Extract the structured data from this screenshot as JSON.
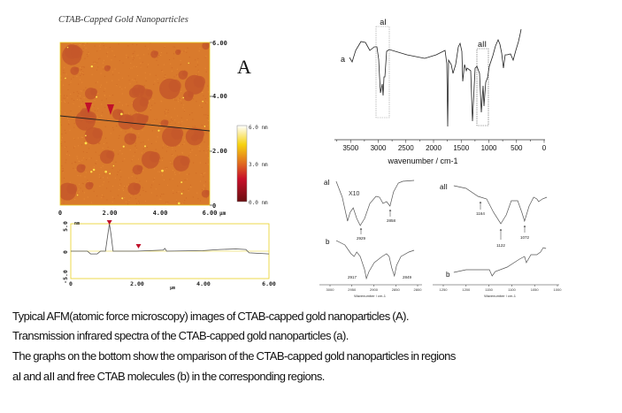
{
  "afm": {
    "title": "CTAB-Capped Gold Nanoparticles",
    "panel_label": "A",
    "y_ticks": [
      "6.00",
      "4.00",
      "2.00",
      "0"
    ],
    "x_ticks": [
      "0",
      "2.00",
      "4.00",
      "6.00"
    ],
    "x_unit": "μm",
    "colorbar_labels": [
      "6.0 nm",
      "3.0 nm",
      "0.0 nm"
    ],
    "colors": {
      "surface": "#d97a2c",
      "islands": "#c4572a",
      "scan_line": "#222222",
      "marker": "#c0102a"
    }
  },
  "profile": {
    "y_unit": "nm",
    "y_ticks": [
      "5.0",
      "0",
      "-5.0"
    ],
    "x_ticks": [
      "0",
      "2.00",
      "4.00",
      "6.00"
    ],
    "x_unit": "μm",
    "ylim": [
      -5,
      5
    ],
    "xlim": [
      0,
      6
    ],
    "x": [
      0,
      0.5,
      0.6,
      0.8,
      0.9,
      1.05,
      1.12,
      1.17,
      1.22,
      1.28,
      2.0,
      2.8,
      2.85,
      2.9,
      4.0,
      4.5,
      5.0,
      5.3,
      5.4,
      6.0
    ],
    "y": [
      0,
      0,
      -0.5,
      -0.5,
      0,
      0,
      3,
      5,
      3,
      0,
      0,
      0.2,
      0.5,
      0,
      0.1,
      0.3,
      0.4,
      0.3,
      -0.3,
      -0.5
    ],
    "markers_x": [
      1.17,
      2.05
    ]
  },
  "chart_data": [
    {
      "type": "line",
      "xlabel": "wavenumber / cm-1",
      "x_ticks": [
        "3500",
        "3000",
        "2500",
        "2000",
        "1500",
        "1000",
        "500",
        "0"
      ],
      "xlim": [
        3750,
        0
      ],
      "series_label": "a",
      "regions": [
        {
          "label": "aI",
          "range": [
            3000,
            2780
          ]
        },
        {
          "label": "aII",
          "range": [
            1200,
            1000
          ]
        }
      ],
      "series": [
        {
          "x": [
            3520,
            3472,
            3408,
            3312,
            3232,
            3152,
            3072,
            3024,
            2992,
            2976,
            2960,
            2928,
            2912,
            2896,
            2880,
            2848,
            2800,
            2480,
            2160,
            1952,
            1792,
            1760,
            1744,
            1728,
            1680,
            1648,
            1600,
            1552,
            1520,
            1488,
            1472,
            1440,
            1408,
            1392,
            1328,
            1296,
            1248,
            1216,
            1168,
            1136,
            1104,
            1088,
            1056,
            1024,
            992,
            928,
            880,
            832,
            800,
            768,
            736,
            704,
            672,
            608,
            560,
            512,
            464,
            432,
            416
          ],
          "y": [
            80,
            75,
            88,
            98,
            97,
            88,
            92,
            92,
            78,
            58,
            40,
            50,
            37,
            58,
            58,
            87,
            89,
            83,
            79,
            83,
            88,
            73,
            2,
            77,
            72,
            62,
            72,
            92,
            96,
            87,
            53,
            72,
            65,
            68,
            65,
            8,
            68,
            70,
            62,
            18,
            48,
            25,
            52,
            57,
            70,
            82,
            93,
            100,
            95,
            85,
            68,
            83,
            83,
            84,
            77,
            88,
            98,
            107,
            112
          ]
        }
      ]
    },
    {
      "type": "line",
      "xlabel": "Wavenumber / cm-1",
      "x_ticks": [
        "3000",
        "2950",
        "2900",
        "2850",
        "2800"
      ],
      "xlim": [
        3020,
        2790
      ],
      "series": [
        {
          "name": "aI",
          "scale_note": "X10",
          "x": [
            2986,
            2972,
            2960,
            2954,
            2947,
            2939,
            2931,
            2921,
            2909,
            2895,
            2887,
            2879,
            2871,
            2863,
            2855,
            2844,
            2834,
            2808
          ],
          "y": [
            125,
            107,
            80,
            90,
            95,
            83,
            75,
            83,
            100,
            108,
            107,
            100,
            102,
            97,
            113,
            123,
            125,
            126
          ]
        },
        {
          "name": "b",
          "x": [
            2986,
            2966,
            2952,
            2945,
            2939,
            2931,
            2921,
            2917,
            2911,
            2899,
            2881,
            2871,
            2865,
            2859,
            2853,
            2848,
            2838,
            2820,
            2808
          ],
          "y": [
            58,
            53,
            43,
            40,
            45,
            40,
            25,
            15,
            23,
            33,
            40,
            43,
            40,
            27,
            18,
            30,
            40,
            45,
            47
          ]
        }
      ],
      "annotations": [
        "2929",
        "2858",
        "2917",
        "2849"
      ]
    },
    {
      "type": "line",
      "xlabel": "Wavenumber / cm-1",
      "x_ticks": [
        "1250",
        "1200",
        "1150",
        "1100",
        "1050",
        "1000"
      ],
      "xlim": [
        1250,
        1000
      ],
      "series": [
        {
          "name": "aII",
          "x": [
            1227,
            1200,
            1174,
            1155,
            1140,
            1124,
            1112,
            1101,
            1087,
            1078,
            1072,
            1062,
            1052,
            1045,
            1041,
            1033,
            1023
          ],
          "y": [
            120,
            117,
            108,
            105,
            90,
            77,
            87,
            103,
            103,
            90,
            80,
            97,
            107,
            105,
            102,
            105,
            107
          ]
        },
        {
          "name": "b",
          "x": [
            1227,
            1200,
            1174,
            1149,
            1143,
            1136,
            1110,
            1083,
            1072,
            1068,
            1058,
            1045,
            1037,
            1031,
            1025
          ],
          "y": [
            22,
            25,
            25,
            25,
            18,
            23,
            28,
            37,
            40,
            33,
            42,
            42,
            45,
            50,
            49
          ]
        }
      ],
      "annotations": [
        "1164",
        "1122",
        "1072"
      ]
    }
  ],
  "caption": [
    "Typical AFM(atomic force microscopy) images of CTAB-capped gold nanoparticles (A).",
    "Transmission infrared spectra of the CTAB-capped gold nanoparticles (a).",
    "The graphs on the bottom show the omparison of the CTAB-capped gold nanoparticles in regions",
    "aI and aII and free CTAB molecules (b) in the corresponding regions."
  ]
}
